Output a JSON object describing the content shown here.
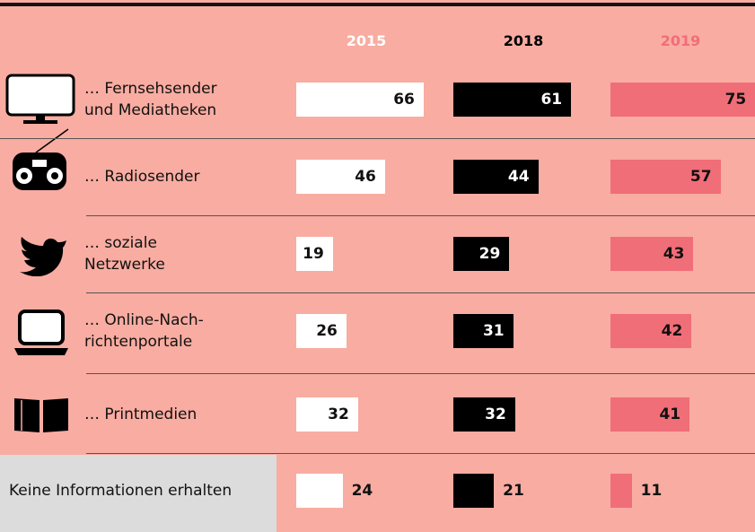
{
  "chart_data": {
    "type": "bar",
    "categories": [
      "… Fernsehsender\nund Mediatheken",
      "… Radiosender",
      "… soziale\nNetzwerke",
      "… Online-Nach-\nrichtenportale",
      "… Printmedien",
      "Keine Informationen erhalten"
    ],
    "series": [
      {
        "name": "2015",
        "color": "#ffffff",
        "values": [
          66,
          46,
          19,
          26,
          32,
          24
        ]
      },
      {
        "name": "2018",
        "color": "#000000",
        "values": [
          61,
          44,
          29,
          31,
          32,
          21
        ]
      },
      {
        "name": "2019",
        "color": "#f06e78",
        "values": [
          75,
          57,
          43,
          42,
          41,
          11
        ]
      }
    ]
  }
}
